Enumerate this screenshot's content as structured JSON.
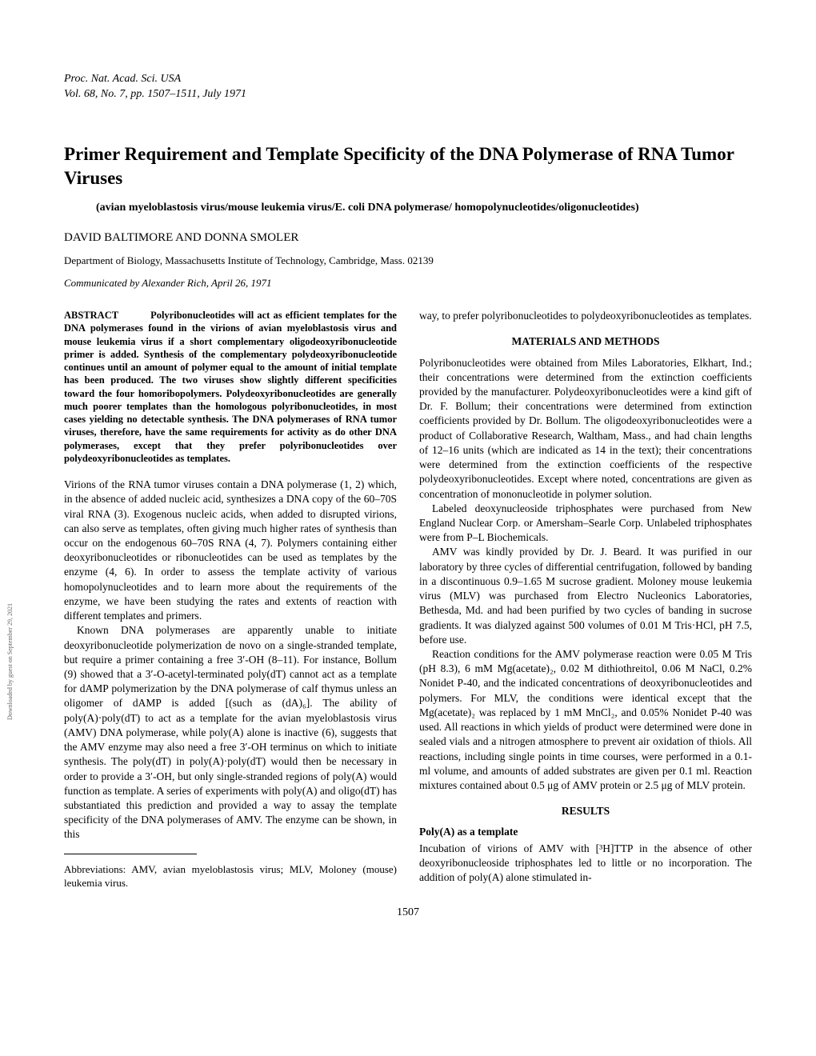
{
  "journal": {
    "name": "Proc. Nat. Acad. Sci. USA",
    "volume": "Vol. 68, No. 7, pp. 1507–1511, July 1971"
  },
  "title": "Primer Requirement and Template Specificity of the DNA Polymerase of RNA Tumor Viruses",
  "subtitle": "(avian myeloblastosis virus/mouse leukemia virus/E. coli DNA polymerase/ homopolynucleotides/oligonucleotides)",
  "authors": "DAVID BALTIMORE AND DONNA SMOLER",
  "affiliation": "Department of Biology, Massachusetts Institute of Technology, Cambridge, Mass. 02139",
  "communicated": "Communicated by Alexander Rich, April 26, 1971",
  "abstract_label": "ABSTRACT",
  "abstract": "Polyribonucleotides will act as efficient templates for the DNA polymerases found in the virions of avian myeloblastosis virus and mouse leukemia virus if a short complementary oligodeoxyribonucleotide primer is added. Synthesis of the complementary polydeoxyribonucleotide continues until an amount of polymer equal to the amount of initial template has been produced. The two viruses show slightly different specificities toward the four homoribopolymers. Polydeoxyribonucleotides are generally much poorer templates than the homologous polyribonucleotides, in most cases yielding no detectable synthesis. The DNA polymerases of RNA tumor viruses, therefore, have the same requirements for activity as do other DNA polymerases, except that they prefer polyribonucleotides over polydeoxyribonucleotides as templates.",
  "left_paragraphs": {
    "p1": "Virions of the RNA tumor viruses contain a DNA polymerase (1, 2) which, in the absence of added nucleic acid, synthesizes a DNA copy of the 60–70S viral RNA (3). Exogenous nucleic acids, when added to disrupted virions, can also serve as templates, often giving much higher rates of synthesis than occur on the endogenous 60–70S RNA (4, 7). Polymers containing either deoxyribonucleotides or ribonucleotides can be used as templates by the enzyme (4, 6). In order to assess the template activity of various homopolynucleotides and to learn more about the requirements of the enzyme, we have been studying the rates and extents of reaction with different templates and primers.",
    "p2": "Known DNA polymerases are apparently unable to initiate deoxyribonucleotide polymerization de novo on a single-stranded template, but require a primer containing a free 3′-OH (8–11). For instance, Bollum (9) showed that a 3′-O-acetyl-terminated poly(dT) cannot act as a template for dAMP polymerization by the DNA polymerase of calf thymus unless an oligomer of dAMP is added [(such as (dA)₆]. The ability of poly(A)·poly(dT) to act as a template for the avian myeloblastosis virus (AMV) DNA polymerase, while poly(A) alone is inactive (6), suggests that the AMV enzyme may also need a free 3′-OH terminus on which to initiate synthesis. The poly(dT) in poly(A)·poly(dT) would then be necessary in order to provide a 3′-OH, but only single-stranded regions of poly(A) would function as template. A series of experiments with poly(A) and oligo(dT) has substantiated this prediction and provided a way to assay the template specificity of the DNA polymerases of AMV. The enzyme can be shown, in this"
  },
  "abbreviations": "Abbreviations: AMV, avian myeloblastosis virus; MLV, Moloney (mouse) leukemia virus.",
  "right_paragraphs": {
    "p1": "way, to prefer polyribonucleotides to polydeoxyribonucleotides as templates.",
    "materials_heading": "MATERIALS AND METHODS",
    "p2": "Polyribonucleotides were obtained from Miles Laboratories, Elkhart, Ind.; their concentrations were determined from the extinction coefficients provided by the manufacturer. Polydeoxyribonucleotides were a kind gift of Dr. F. Bollum; their concentrations were determined from extinction coefficients provided by Dr. Bollum. The oligodeoxyribonucleotides were a product of Collaborative Research, Waltham, Mass., and had chain lengths of 12–16 units (which are indicated as 14 in the text); their concentrations were determined from the extinction coefficients of the respective polydeoxyribonucleotides. Except where noted, concentrations are given as concentration of mononucleotide in polymer solution.",
    "p3": "Labeled deoxynucleoside triphosphates were purchased from New England Nuclear Corp. or Amersham–Searle Corp. Unlabeled triphosphates were from P–L Biochemicals.",
    "p4": "AMV was kindly provided by Dr. J. Beard. It was purified in our laboratory by three cycles of differential centrifugation, followed by banding in a discontinuous 0.9–1.65 M sucrose gradient. Moloney mouse leukemia virus (MLV) was purchased from Electro Nucleonics Laboratories, Bethesda, Md. and had been purified by two cycles of banding in sucrose gradients. It was dialyzed against 500 volumes of 0.01 M Tris·HCl, pH 7.5, before use.",
    "p5": "Reaction conditions for the AMV polymerase reaction were 0.05 M Tris (pH 8.3), 6 mM Mg(acetate)₂, 0.02 M dithiothreitol, 0.06 M NaCl, 0.2% Nonidet P-40, and the indicated concentrations of deoxyribonucleotides and polymers. For MLV, the conditions were identical except that the Mg(acetate)₂ was replaced by 1 mM MnCl₂, and 0.05% Nonidet P-40 was used. All reactions in which yields of product were determined were done in sealed vials and a nitrogen atmosphere to prevent air oxidation of thiols. All reactions, including single points in time courses, were performed in a 0.1-ml volume, and amounts of added substrates are given per 0.1 ml. Reaction mixtures contained about 0.5 μg of AMV protein or 2.5 μg of MLV protein.",
    "results_heading": "RESULTS",
    "subsection": "Poly(A) as a template",
    "p6": "Incubation of virions of AMV with [³H]TTP in the absence of other deoxyribonucleoside triphosphates led to little or no incorporation. The addition of poly(A) alone stimulated in-"
  },
  "page_number": "1507",
  "side_text": "Downloaded by guest on September 29, 2021"
}
